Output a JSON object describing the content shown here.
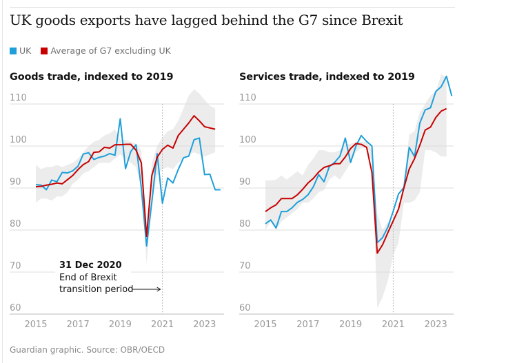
{
  "title": "UK goods exports have lagged behind the G7 since Brexit",
  "legend": [
    {
      "label": "UK",
      "color": "#1e9fda"
    },
    {
      "label": "Average of G7 excluding UK",
      "color": "#c70000"
    }
  ],
  "footer": "Guardian graphic. Source: OBR/OECD",
  "chart_data": [
    {
      "type": "line",
      "title": "Goods trade, indexed to 2019",
      "x_start": 2015.0,
      "x_step": 0.25,
      "xticks": [
        "2015",
        "2017",
        "2019",
        "2021",
        "2023"
      ],
      "yticks": [
        "60",
        "70",
        "80",
        "90",
        "100",
        "110"
      ],
      "ylim": [
        60,
        110
      ],
      "grid": true,
      "annotation": {
        "heading": "31 Dec 2020",
        "line1": "End of Brexit",
        "line2": "transition period",
        "x": 2021
      },
      "series": [
        {
          "name": "UK",
          "color": "#1e9fda",
          "values": [
            90.8,
            90.7,
            89.6,
            91.9,
            91.5,
            93.7,
            93.6,
            94.1,
            95.2,
            98.1,
            98.4,
            96.8,
            97.3,
            97.6,
            98.2,
            97.8,
            106.5,
            94.6,
            98.7,
            100.3,
            90.0,
            76.2,
            86.7,
            98.2,
            86.4,
            92.4,
            91.2,
            94.4,
            97.2,
            97.6,
            101.5,
            101.9,
            93.2,
            93.3,
            89.6,
            89.6
          ]
        },
        {
          "name": "Average of G7 excluding UK",
          "color": "#c70000",
          "values": [
            90.3,
            90.4,
            90.7,
            90.9,
            91.2,
            91.0,
            92.0,
            93.0,
            94.4,
            95.6,
            96.3,
            98.5,
            98.6,
            99.7,
            99.5,
            100.3,
            100.3,
            100.4,
            100.4,
            99.0,
            96.0,
            78.5,
            93.0,
            97.3,
            99.2,
            100.2,
            99.5,
            102.5,
            104.0,
            105.5,
            107.2,
            106.0,
            104.6,
            104.3,
            104.0
          ]
        }
      ],
      "band_high": [
        95.5,
        94.5,
        95,
        95,
        95.5,
        95,
        95.5,
        96,
        97,
        98.5,
        100,
        101,
        101.5,
        102.5,
        103,
        104,
        101.5,
        101.5,
        101,
        100.5,
        99,
        80,
        96,
        100,
        102,
        103.5,
        104,
        106,
        109,
        112,
        113.5,
        112.5,
        111,
        109.5,
        109
      ],
      "band_low": [
        86.5,
        87.5,
        87.5,
        87,
        88,
        88,
        89,
        91,
        92,
        93.5,
        94,
        95,
        96,
        96,
        96,
        97,
        98,
        97,
        96,
        95,
        90,
        72,
        87,
        93,
        94.5,
        95,
        94.5,
        96,
        97,
        98,
        98.5,
        98,
        97.5,
        98,
        98.5
      ]
    },
    {
      "type": "line",
      "title": "Services trade, indexed to 2019",
      "x_start": 2015.0,
      "x_step": 0.25,
      "xticks": [
        "2015",
        "2017",
        "2019",
        "2021",
        "2023"
      ],
      "yticks": [
        "60",
        "70",
        "80",
        "90",
        "100",
        "110"
      ],
      "ylim": [
        60,
        110
      ],
      "grid": true,
      "series": [
        {
          "name": "UK",
          "color": "#1e9fda",
          "values": [
            81.5,
            82.4,
            80.5,
            84.4,
            84.4,
            85.3,
            86.6,
            87.3,
            88.4,
            90.3,
            93.2,
            91.5,
            95.1,
            96.1,
            97.6,
            101.9,
            96.1,
            100.0,
            102.5,
            101.1,
            100.0,
            77.0,
            78.2,
            80.7,
            84.5,
            88.6,
            90.1,
            99.7,
            97.5,
            105.5,
            108.6,
            109.1,
            113.0,
            114.1,
            116.6,
            111.9
          ]
        },
        {
          "name": "Average of G7 excluding UK",
          "color": "#c70000",
          "values": [
            84.4,
            85.3,
            86.0,
            87.5,
            87.5,
            87.5,
            88.4,
            89.7,
            91.2,
            92.3,
            93.8,
            94.9,
            95.3,
            95.8,
            95.8,
            97.4,
            99.4,
            100.6,
            100.4,
            99.7,
            93.7,
            74.5,
            76.5,
            79.4,
            82.2,
            85.0,
            90.0,
            94.5,
            97.0,
            100.2,
            103.8,
            104.5,
            106.8,
            108.3,
            108.9
          ]
        }
      ],
      "band_high": [
        91.8,
        91.8,
        92,
        93,
        92,
        93,
        94,
        93,
        95.5,
        97,
        99,
        99,
        98.5,
        98.5,
        99,
        100.5,
        100.5,
        101,
        101,
        101,
        99,
        84,
        80,
        82,
        82,
        86,
        91,
        102.7,
        103.5,
        108,
        110,
        112,
        113,
        117,
        116.5
      ],
      "band_low": [
        80,
        82,
        80,
        82,
        83,
        84,
        85,
        86.5,
        86.5,
        87.5,
        89,
        89.5,
        92,
        93,
        92,
        94,
        96,
        98.5,
        99.5,
        99.5,
        96,
        61.5,
        64,
        68,
        74,
        77,
        86.5,
        86.5,
        87,
        89,
        99,
        99,
        98.5,
        97.5,
        97.5
      ]
    }
  ]
}
